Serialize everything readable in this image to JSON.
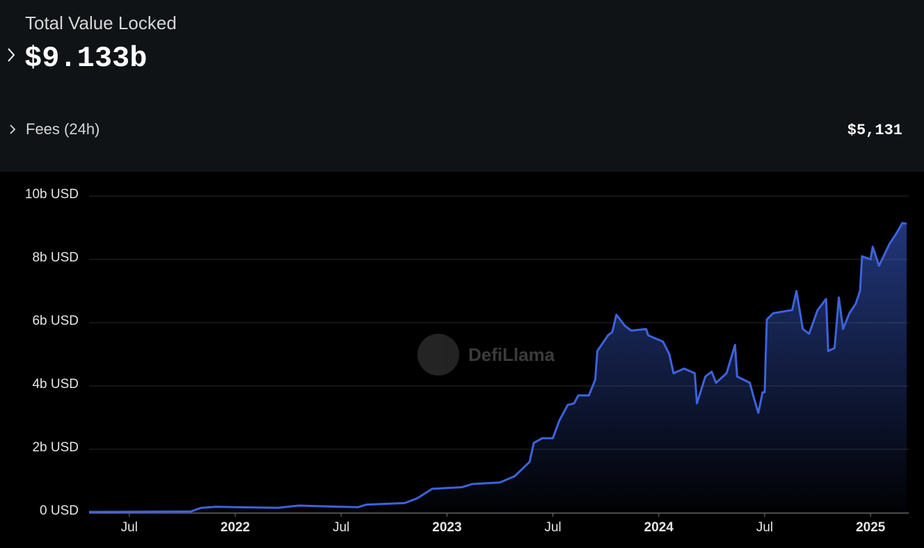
{
  "header": {
    "tvl_label": "Total Value Locked",
    "tvl_value": "$9.133b",
    "fees_label": "Fees (24h)",
    "fees_value": "$5,131"
  },
  "chart_data": {
    "type": "area",
    "watermark": "DefiLlama",
    "x": [
      2021.31,
      2021.79,
      2021.84,
      2021.91,
      2022.0,
      2022.2,
      2022.3,
      2022.5,
      2022.58,
      2022.62,
      2022.8,
      2022.86,
      2022.93,
      2023.07,
      2023.12,
      2023.25,
      2023.32,
      2023.39,
      2023.41,
      2023.45,
      2023.5,
      2023.53,
      2023.57,
      2023.6,
      2023.62,
      2023.67,
      2023.7,
      2023.71,
      2023.76,
      2023.78,
      2023.8,
      2023.84,
      2023.87,
      2023.94,
      2023.95,
      2024.02,
      2024.05,
      2024.07,
      2024.12,
      2024.17,
      2024.18,
      2024.22,
      2024.25,
      2024.27,
      2024.32,
      2024.36,
      2024.37,
      2024.43,
      2024.45,
      2024.47,
      2024.49,
      2024.5,
      2024.51,
      2024.54,
      2024.63,
      2024.65,
      2024.68,
      2024.71,
      2024.75,
      2024.79,
      2024.8,
      2024.83,
      2024.85,
      2024.87,
      2024.9,
      2024.93,
      2024.95,
      2024.96,
      2025.0,
      2025.01,
      2025.04,
      2025.09,
      2025.12,
      2025.15,
      2025.17
    ],
    "color": "#3d63dd",
    "values": [
      0.02,
      0.03,
      0.15,
      0.18,
      0.17,
      0.15,
      0.22,
      0.18,
      0.17,
      0.25,
      0.3,
      0.45,
      0.75,
      0.8,
      0.9,
      0.95,
      1.15,
      1.6,
      2.2,
      2.35,
      2.35,
      2.9,
      3.4,
      3.45,
      3.7,
      3.7,
      4.2,
      5.1,
      5.6,
      5.7,
      6.25,
      5.9,
      5.75,
      5.8,
      5.6,
      5.4,
      5.0,
      4.4,
      4.55,
      4.4,
      3.45,
      4.3,
      4.45,
      4.1,
      4.4,
      5.3,
      4.3,
      4.1,
      3.6,
      3.15,
      3.8,
      3.8,
      6.1,
      6.3,
      6.4,
      7.0,
      5.8,
      5.65,
      6.4,
      6.75,
      5.1,
      5.2,
      6.8,
      5.8,
      6.3,
      6.6,
      7.0,
      8.1,
      8.0,
      8.4,
      7.8,
      8.5,
      8.8,
      9.15,
      9.13
    ],
    "xlim": [
      2021.31,
      2025.18
    ],
    "xticks": [
      {
        "value": 2021.5,
        "label": "Jul"
      },
      2022,
      {
        "value": 2022.5,
        "label": "Jul"
      },
      2023,
      {
        "value": 2023.5,
        "label": "Jul"
      },
      2024,
      {
        "value": 2024.5,
        "label": "Jul"
      },
      2025
    ],
    "ylim": [
      0,
      10
    ],
    "yticks": [
      {
        "value": 0,
        "label": "0 USD"
      },
      {
        "value": 2,
        "label": "2b USD"
      },
      {
        "value": 4,
        "label": "4b USD"
      },
      {
        "value": 6,
        "label": "6b USD"
      },
      {
        "value": 8,
        "label": "8b USD"
      },
      {
        "value": 10,
        "label": "10b USD"
      }
    ],
    "grid": true
  }
}
